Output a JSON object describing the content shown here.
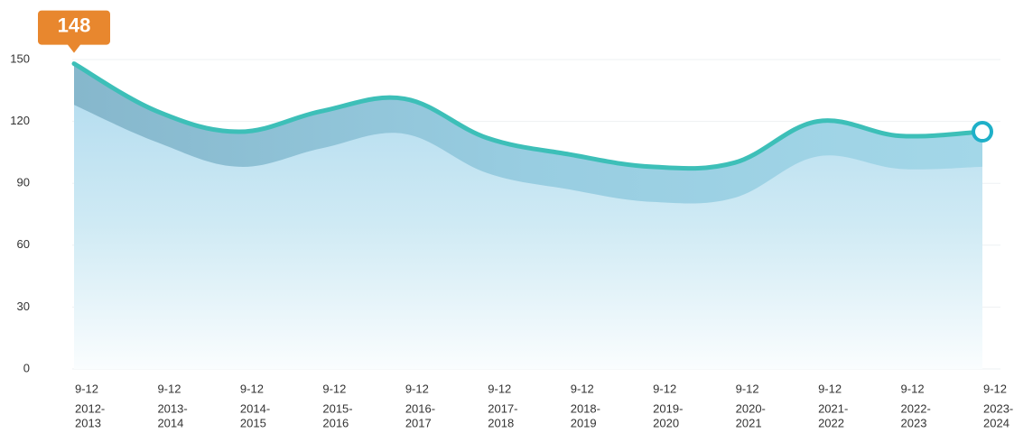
{
  "chart_data": {
    "type": "area",
    "categories": [
      [
        "9-12",
        "2012-",
        "2013"
      ],
      [
        "9-12",
        "2013-",
        "2014"
      ],
      [
        "9-12",
        "2014-",
        "2015"
      ],
      [
        "9-12",
        "2015-",
        "2016"
      ],
      [
        "9-12",
        "2016-",
        "2017"
      ],
      [
        "9-12",
        "2017-",
        "2018"
      ],
      [
        "9-12",
        "2018-",
        "2019"
      ],
      [
        "9-12",
        "2019-",
        "2020"
      ],
      [
        "9-12",
        "2020-",
        "2021"
      ],
      [
        "9-12",
        "2021-",
        "2022"
      ],
      [
        "9-12",
        "2022-",
        "2023"
      ],
      [
        "9-12",
        "2023-",
        "2024"
      ]
    ],
    "series": [
      {
        "color": "#3dbfb8",
        "values": [
          148,
          125,
          115,
          125,
          131,
          112,
          104,
          98,
          100,
          120,
          113,
          115
        ]
      },
      {
        "color": "#bfe3f0",
        "values": [
          128,
          110,
          98,
          107,
          114,
          95,
          87,
          81,
          83,
          103,
          97,
          98
        ]
      }
    ],
    "ylim": [
      0,
      150
    ],
    "yticks": [
      0,
      30,
      60,
      90,
      120,
      150
    ],
    "grid": true,
    "callout_color": "#e8872e"
  }
}
